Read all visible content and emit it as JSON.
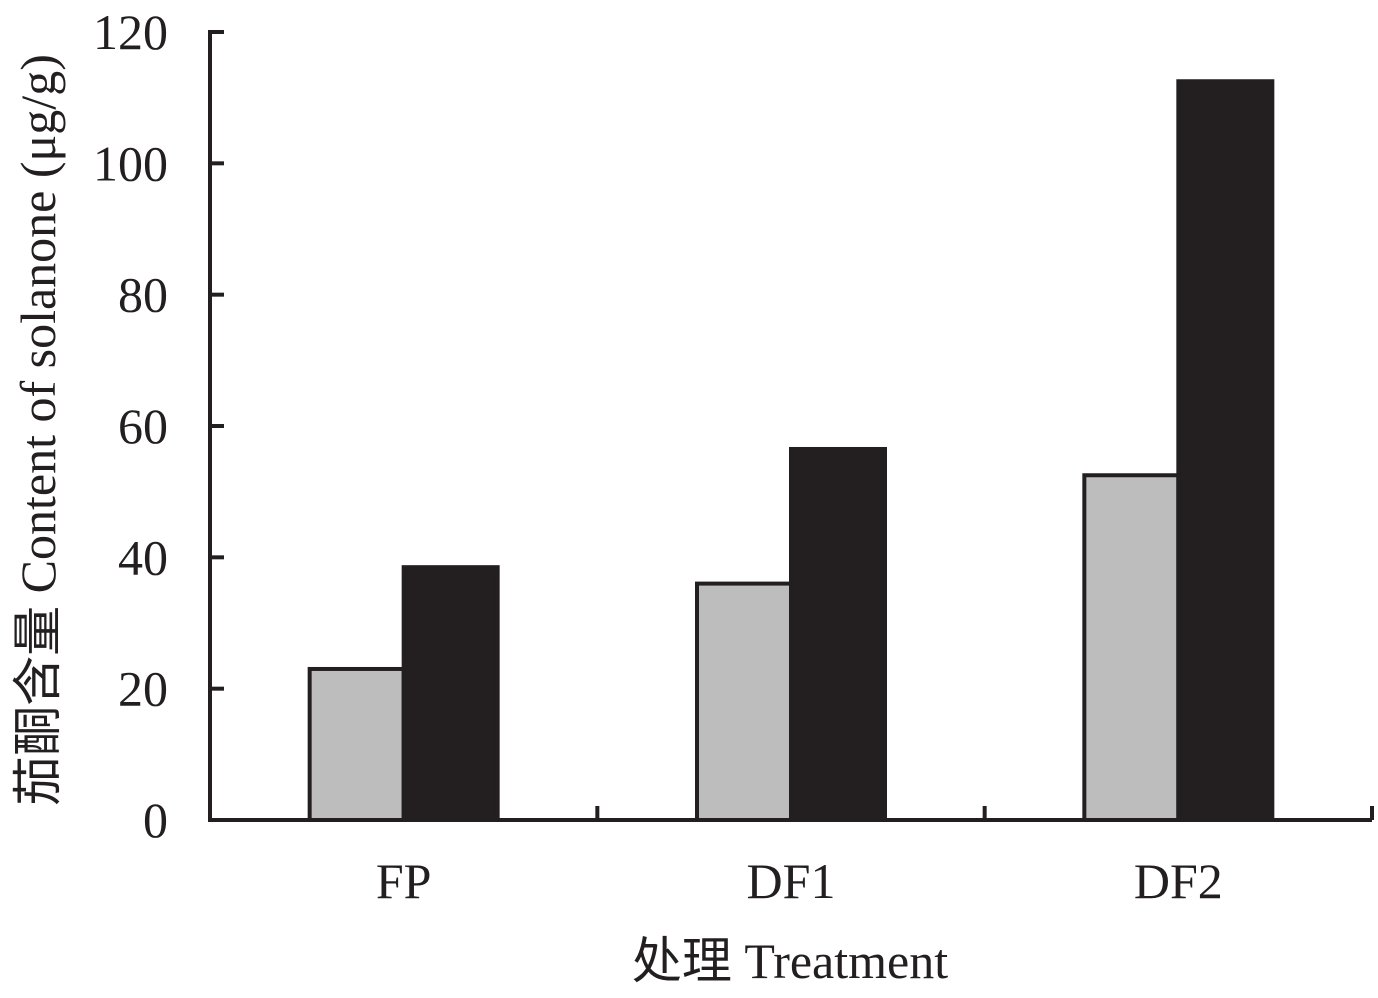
{
  "chart_data": {
    "type": "bar",
    "title": "",
    "xlabel": "处理 Treatment",
    "ylabel": "茄酮含量 Content of solanone (μg/g)",
    "categories": [
      "FP",
      "DF1",
      "DF2"
    ],
    "series": [
      {
        "values": [
          23,
          36,
          52.5
        ],
        "color": "#bdbdbd"
      },
      {
        "values": [
          38.5,
          56.5,
          112.5
        ],
        "color": "#231f20"
      }
    ],
    "ylim": [
      0,
      120
    ],
    "yticks": [
      "0",
      "20",
      "40",
      "60",
      "80",
      "100",
      "120"
    ],
    "grid": false,
    "legend": "none",
    "colors": {
      "axis": "#231f20",
      "outline": "#231f20"
    }
  }
}
